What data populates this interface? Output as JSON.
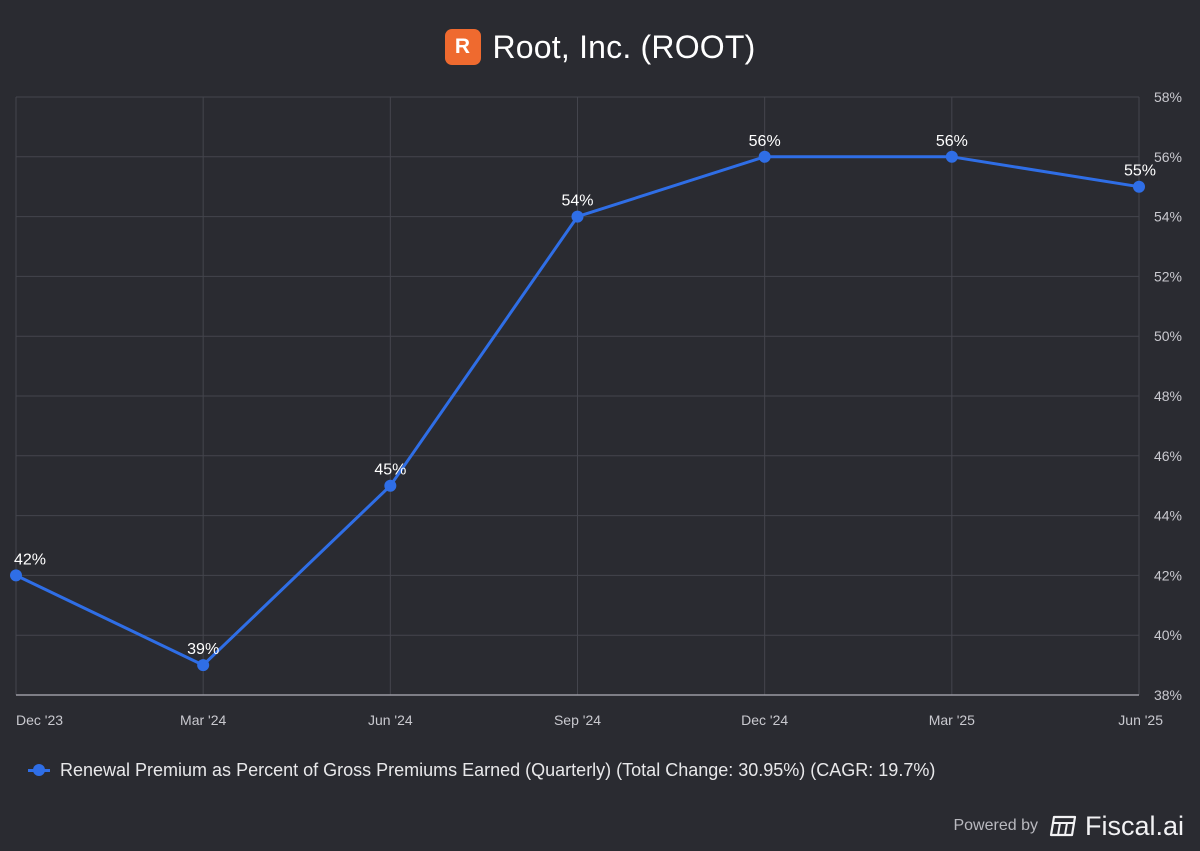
{
  "header": {
    "logo_letter": "R",
    "title": "Root, Inc. (ROOT)"
  },
  "chart_data": {
    "type": "line",
    "categories": [
      "Dec '23",
      "Mar '24",
      "Jun '24",
      "Sep '24",
      "Dec '24",
      "Mar '25",
      "Jun '25"
    ],
    "series": [
      {
        "name": "Renewal Premium as Percent of Gross Premiums Earned (Quarterly) (Total Change: 30.95%) (CAGR: 19.7%)",
        "values": [
          42,
          39,
          45,
          54,
          56,
          56,
          55
        ],
        "labels": [
          "42%",
          "39%",
          "45%",
          "54%",
          "56%",
          "56%",
          "55%"
        ],
        "color": "#2f6ee6"
      }
    ],
    "ylim": [
      38,
      58
    ],
    "yticks": [
      38,
      40,
      42,
      44,
      46,
      48,
      50,
      52,
      54,
      56,
      58
    ],
    "ytick_labels": [
      "38%",
      "40%",
      "42%",
      "44%",
      "46%",
      "48%",
      "50%",
      "52%",
      "54%",
      "56%",
      "58%"
    ],
    "yaxis_position": "right",
    "grid": true,
    "legend_position": "bottom-left"
  },
  "colors": {
    "background": "#2a2b31",
    "grid": "#44454d",
    "line": "#2f6ee6",
    "logo": "#ef6a2f"
  },
  "footer": {
    "powered_by": "Powered by",
    "brand": "Fiscal.ai",
    "brand_icon": "fiscal-ai-logo-icon"
  }
}
